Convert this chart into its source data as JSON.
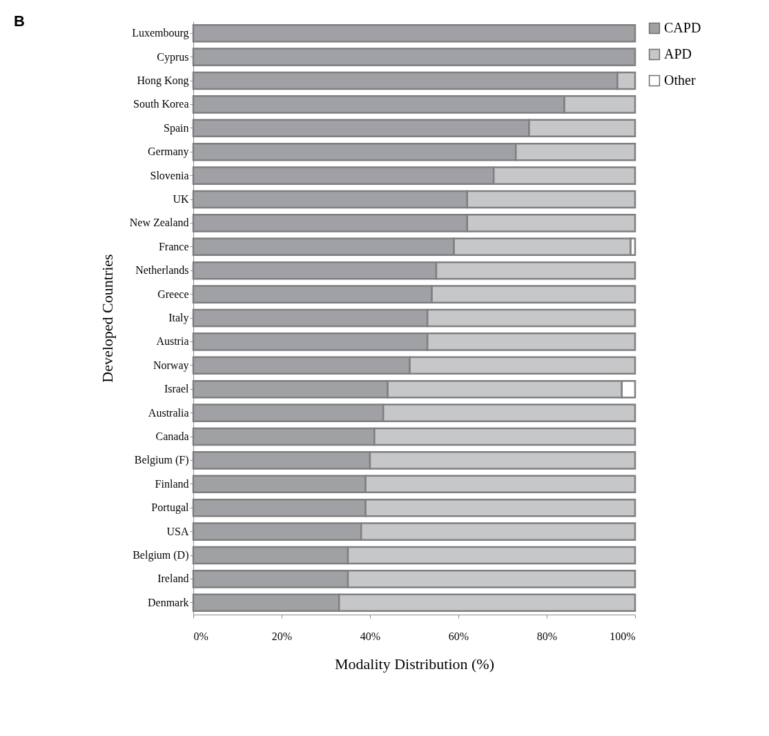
{
  "chart_data": {
    "type": "bar",
    "orientation": "horizontal",
    "stacked": true,
    "xlabel": "Modality Distribution (%)",
    "ylabel": "Developed Countries",
    "annotations": [
      "B"
    ],
    "categories": [
      "Luxembourg",
      "Cyprus",
      "Hong Kong",
      "South Korea",
      "Spain",
      "Germany",
      "Slovenia",
      "UK",
      "New Zealand",
      "France",
      "Netherlands",
      "Greece",
      "Italy",
      "Austria",
      "Norway",
      "Israel",
      "Australia",
      "Canada",
      "Belgium (F)",
      "Finland",
      "Portugal",
      "USA",
      "Belgium (D)",
      "Ireland",
      "Denmark"
    ],
    "series": [
      {
        "name": "CAPD",
        "color": "#a0a1a5",
        "values": [
          100,
          100,
          96,
          84,
          76,
          73,
          68,
          62,
          62,
          59,
          55,
          54,
          53,
          53,
          49,
          44,
          43,
          41,
          40,
          39,
          39,
          38,
          35,
          35,
          33
        ]
      },
      {
        "name": "APD",
        "color": "#c6c7c9",
        "values": [
          null,
          null,
          4,
          16,
          24,
          27,
          32,
          38,
          38,
          40,
          45,
          46,
          47,
          47,
          51,
          53,
          57,
          59,
          60,
          61,
          61,
          62,
          65,
          65,
          67
        ]
      },
      {
        "name": "Other",
        "color": "#ffffff",
        "values": [
          null,
          null,
          null,
          null,
          null,
          null,
          null,
          null,
          null,
          1,
          null,
          null,
          null,
          null,
          null,
          3,
          null,
          null,
          null,
          null,
          null,
          null,
          null,
          null,
          null
        ]
      }
    ],
    "xlim": [
      0,
      100
    ],
    "xticks": [
      {
        "value": 0,
        "label": "0%"
      },
      {
        "value": 20,
        "label": "20%"
      },
      {
        "value": 40,
        "label": "40%"
      },
      {
        "value": 60,
        "label": "60%"
      },
      {
        "value": 80,
        "label": "80%"
      },
      {
        "value": 100,
        "label": "100%"
      }
    ],
    "grid": false,
    "legend": "right"
  }
}
